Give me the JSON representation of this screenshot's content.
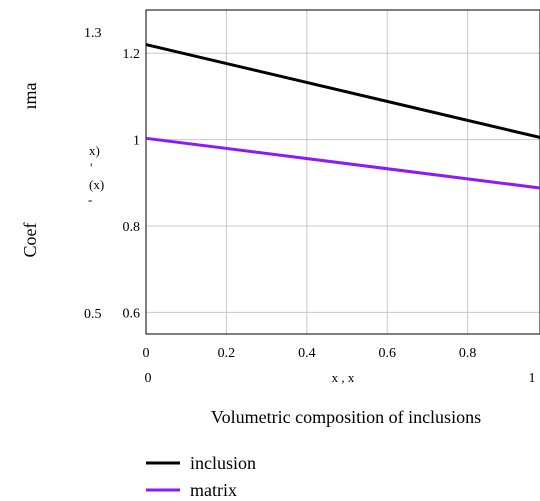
{
  "chart_data": {
    "type": "line",
    "xlabel": "Volumetric composition of inclusions",
    "ylabel_fragments": [
      "ıma",
      "Coef"
    ],
    "tick_axis_fragments": [
      "x)",
      "'",
      "(x)",
      "-"
    ],
    "x_axis_variable_label": "x , x",
    "xlim": [
      0,
      0.98
    ],
    "ylim": [
      0.55,
      1.3
    ],
    "x_range_labels": {
      "min": "0",
      "max": "1"
    },
    "y_range_labels": {
      "max": "1.3",
      "min": "0.5"
    },
    "x_ticks": [
      {
        "value": 0,
        "label": "0"
      },
      {
        "value": 0.2,
        "label": "0.2"
      },
      {
        "value": 0.4,
        "label": "0.4"
      },
      {
        "value": 0.6,
        "label": "0.6"
      },
      {
        "value": 0.8,
        "label": "0.8"
      }
    ],
    "y_ticks": [
      {
        "value": 0.6,
        "label": "0.6"
      },
      {
        "value": 0.8,
        "label": "0.8"
      },
      {
        "value": 1.0,
        "label": "1"
      },
      {
        "value": 1.2,
        "label": "1.2"
      }
    ],
    "grid": true,
    "legend_position": "bottom-left",
    "series": [
      {
        "name": "inclusion",
        "color": "#000000",
        "x": [
          0,
          0.98
        ],
        "y": [
          1.22,
          1.005
        ]
      },
      {
        "name": "matrix",
        "color": "#8b1aff",
        "x": [
          0,
          0.98
        ],
        "y": [
          1.003,
          0.888
        ]
      }
    ]
  }
}
